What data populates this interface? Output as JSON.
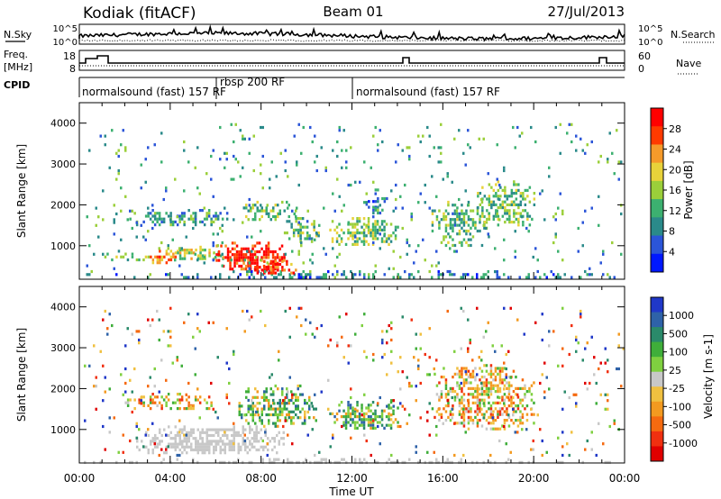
{
  "header": {
    "station": "Kodiak (fitACF)",
    "beam": "Beam 01",
    "date": "27/Jul/2013"
  },
  "nsky_panel": {
    "left_label": "N.Sky",
    "left_ticks": [
      "10^5",
      "10^0"
    ],
    "right_label": "N.Search",
    "right_ticks": [
      "10^5",
      "10^0"
    ]
  },
  "freq_panel": {
    "left_label_line1": "Freq.",
    "left_label_line2": "[MHz]",
    "left_ticks": [
      "18",
      "8"
    ],
    "right_label": "Nave",
    "right_ticks": [
      "60",
      "0"
    ]
  },
  "cpid_panel": {
    "label": "CPID",
    "segments": [
      {
        "label": "normalsound (fast) 157 RF",
        "start": "00:00",
        "end": "06:00"
      },
      {
        "label": "rbsp 200 RF",
        "start": "06:00",
        "end": "12:00"
      },
      {
        "label": "normalsound (fast) 157 RF",
        "start": "12:00",
        "end": "24:00"
      }
    ]
  },
  "chart_data": [
    {
      "type": "heatmap",
      "title": "",
      "xlabel": "Time UT",
      "ylabel": "Slant Range [km]",
      "x_ticks": [
        "00:00",
        "04:00",
        "08:00",
        "12:00",
        "16:00",
        "20:00",
        "00:00"
      ],
      "x_range_hours": [
        0,
        24
      ],
      "y_ticks": [
        "1000",
        "2000",
        "3000",
        "4000"
      ],
      "ylim": [
        180,
        4500
      ],
      "colorbar": {
        "label": "Power [dB]",
        "ticks": [
          "4",
          "8",
          "12",
          "16",
          "20",
          "24",
          "28"
        ],
        "range": [
          0,
          30
        ],
        "colors": [
          "#0018ff",
          "#2b55d8",
          "#2a8a8a",
          "#3cb070",
          "#9bcf3a",
          "#e8d23a",
          "#f59a2a",
          "#ff3a00",
          "#ff0000"
        ]
      },
      "clusters": [
        {
          "t0": 0.2,
          "t1": 24,
          "r0": 200,
          "r1": 400,
          "value": 8,
          "density": 0.35
        },
        {
          "t0": 1.0,
          "t1": 3.0,
          "r0": 650,
          "r1": 900,
          "value": 14,
          "density": 0.45
        },
        {
          "t0": 3.0,
          "t1": 4.5,
          "r0": 600,
          "r1": 900,
          "value": 22,
          "density": 0.7
        },
        {
          "t0": 4.0,
          "t1": 6.5,
          "r0": 700,
          "r1": 1000,
          "value": 16,
          "density": 0.65
        },
        {
          "t0": 6.0,
          "t1": 9.0,
          "r0": 450,
          "r1": 1100,
          "value": 27,
          "density": 0.85
        },
        {
          "t0": 7.5,
          "t1": 9.5,
          "r0": 300,
          "r1": 650,
          "value": 25,
          "density": 0.7
        },
        {
          "t0": 2.0,
          "t1": 6.5,
          "r0": 1500,
          "r1": 1900,
          "value": 10,
          "density": 0.55
        },
        {
          "t0": 7.0,
          "t1": 9.5,
          "r0": 1650,
          "r1": 2100,
          "value": 13,
          "density": 0.45
        },
        {
          "t0": 9.0,
          "t1": 10.5,
          "r0": 1100,
          "r1": 1700,
          "value": 12,
          "density": 0.6
        },
        {
          "t0": 11.0,
          "t1": 14.0,
          "r0": 1000,
          "r1": 1700,
          "value": 14,
          "density": 0.6
        },
        {
          "t0": 12.5,
          "t1": 13.5,
          "r0": 1800,
          "r1": 2400,
          "value": 8,
          "density": 0.4
        },
        {
          "t0": 15.5,
          "t1": 18.0,
          "r0": 1000,
          "r1": 2100,
          "value": 12,
          "density": 0.5
        },
        {
          "t0": 17.5,
          "t1": 20.0,
          "r0": 1500,
          "r1": 2600,
          "value": 13,
          "density": 0.55
        },
        {
          "t0": 0.2,
          "t1": 24,
          "r0": 400,
          "r1": 4000,
          "value": 10,
          "density": 0.03
        }
      ]
    },
    {
      "type": "heatmap",
      "title": "",
      "xlabel": "Time UT",
      "ylabel": "Slant Range [km]",
      "x_ticks": [
        "00:00",
        "04:00",
        "08:00",
        "12:00",
        "16:00",
        "20:00",
        "00:00"
      ],
      "x_range_hours": [
        0,
        24
      ],
      "y_ticks": [
        "1000",
        "2000",
        "3000",
        "4000"
      ],
      "ylim": [
        180,
        4500
      ],
      "colorbar": {
        "label": "Velocity [m s-1]",
        "ticks": [
          "1000",
          "500",
          "100",
          "25",
          "-25",
          "-100",
          "-500",
          "-1000"
        ],
        "colors": [
          "#2038c8",
          "#2e62a8",
          "#2a8a6a",
          "#3fae3a",
          "#7fd040",
          "#c8c8c8",
          "#f0c040",
          "#f39a20",
          "#f56a10",
          "#f03010",
          "#e00000"
        ]
      },
      "clusters": [
        {
          "t0": 0.2,
          "t1": 24,
          "r0": 200,
          "r1": 300,
          "value": "ground",
          "density": 0.5
        },
        {
          "t0": 2.5,
          "t1": 9.0,
          "r0": 400,
          "r1": 1100,
          "value": "ground",
          "density": 0.7
        },
        {
          "t0": 2.0,
          "t1": 6.0,
          "r0": 1500,
          "r1": 1900,
          "value": "mixed-orange",
          "density": 0.5
        },
        {
          "t0": 7.0,
          "t1": 10.5,
          "r0": 1100,
          "r1": 2100,
          "value": "mixed-green",
          "density": 0.55
        },
        {
          "t0": 11.0,
          "t1": 14.0,
          "r0": 1000,
          "r1": 1700,
          "value": "mixed-green",
          "density": 0.6
        },
        {
          "t0": 15.5,
          "t1": 20.0,
          "r0": 1000,
          "r1": 2600,
          "value": "mixed-orange",
          "density": 0.55
        },
        {
          "t0": 0.2,
          "t1": 24,
          "r0": 400,
          "r1": 4000,
          "value": "mixed",
          "density": 0.03
        }
      ]
    }
  ]
}
